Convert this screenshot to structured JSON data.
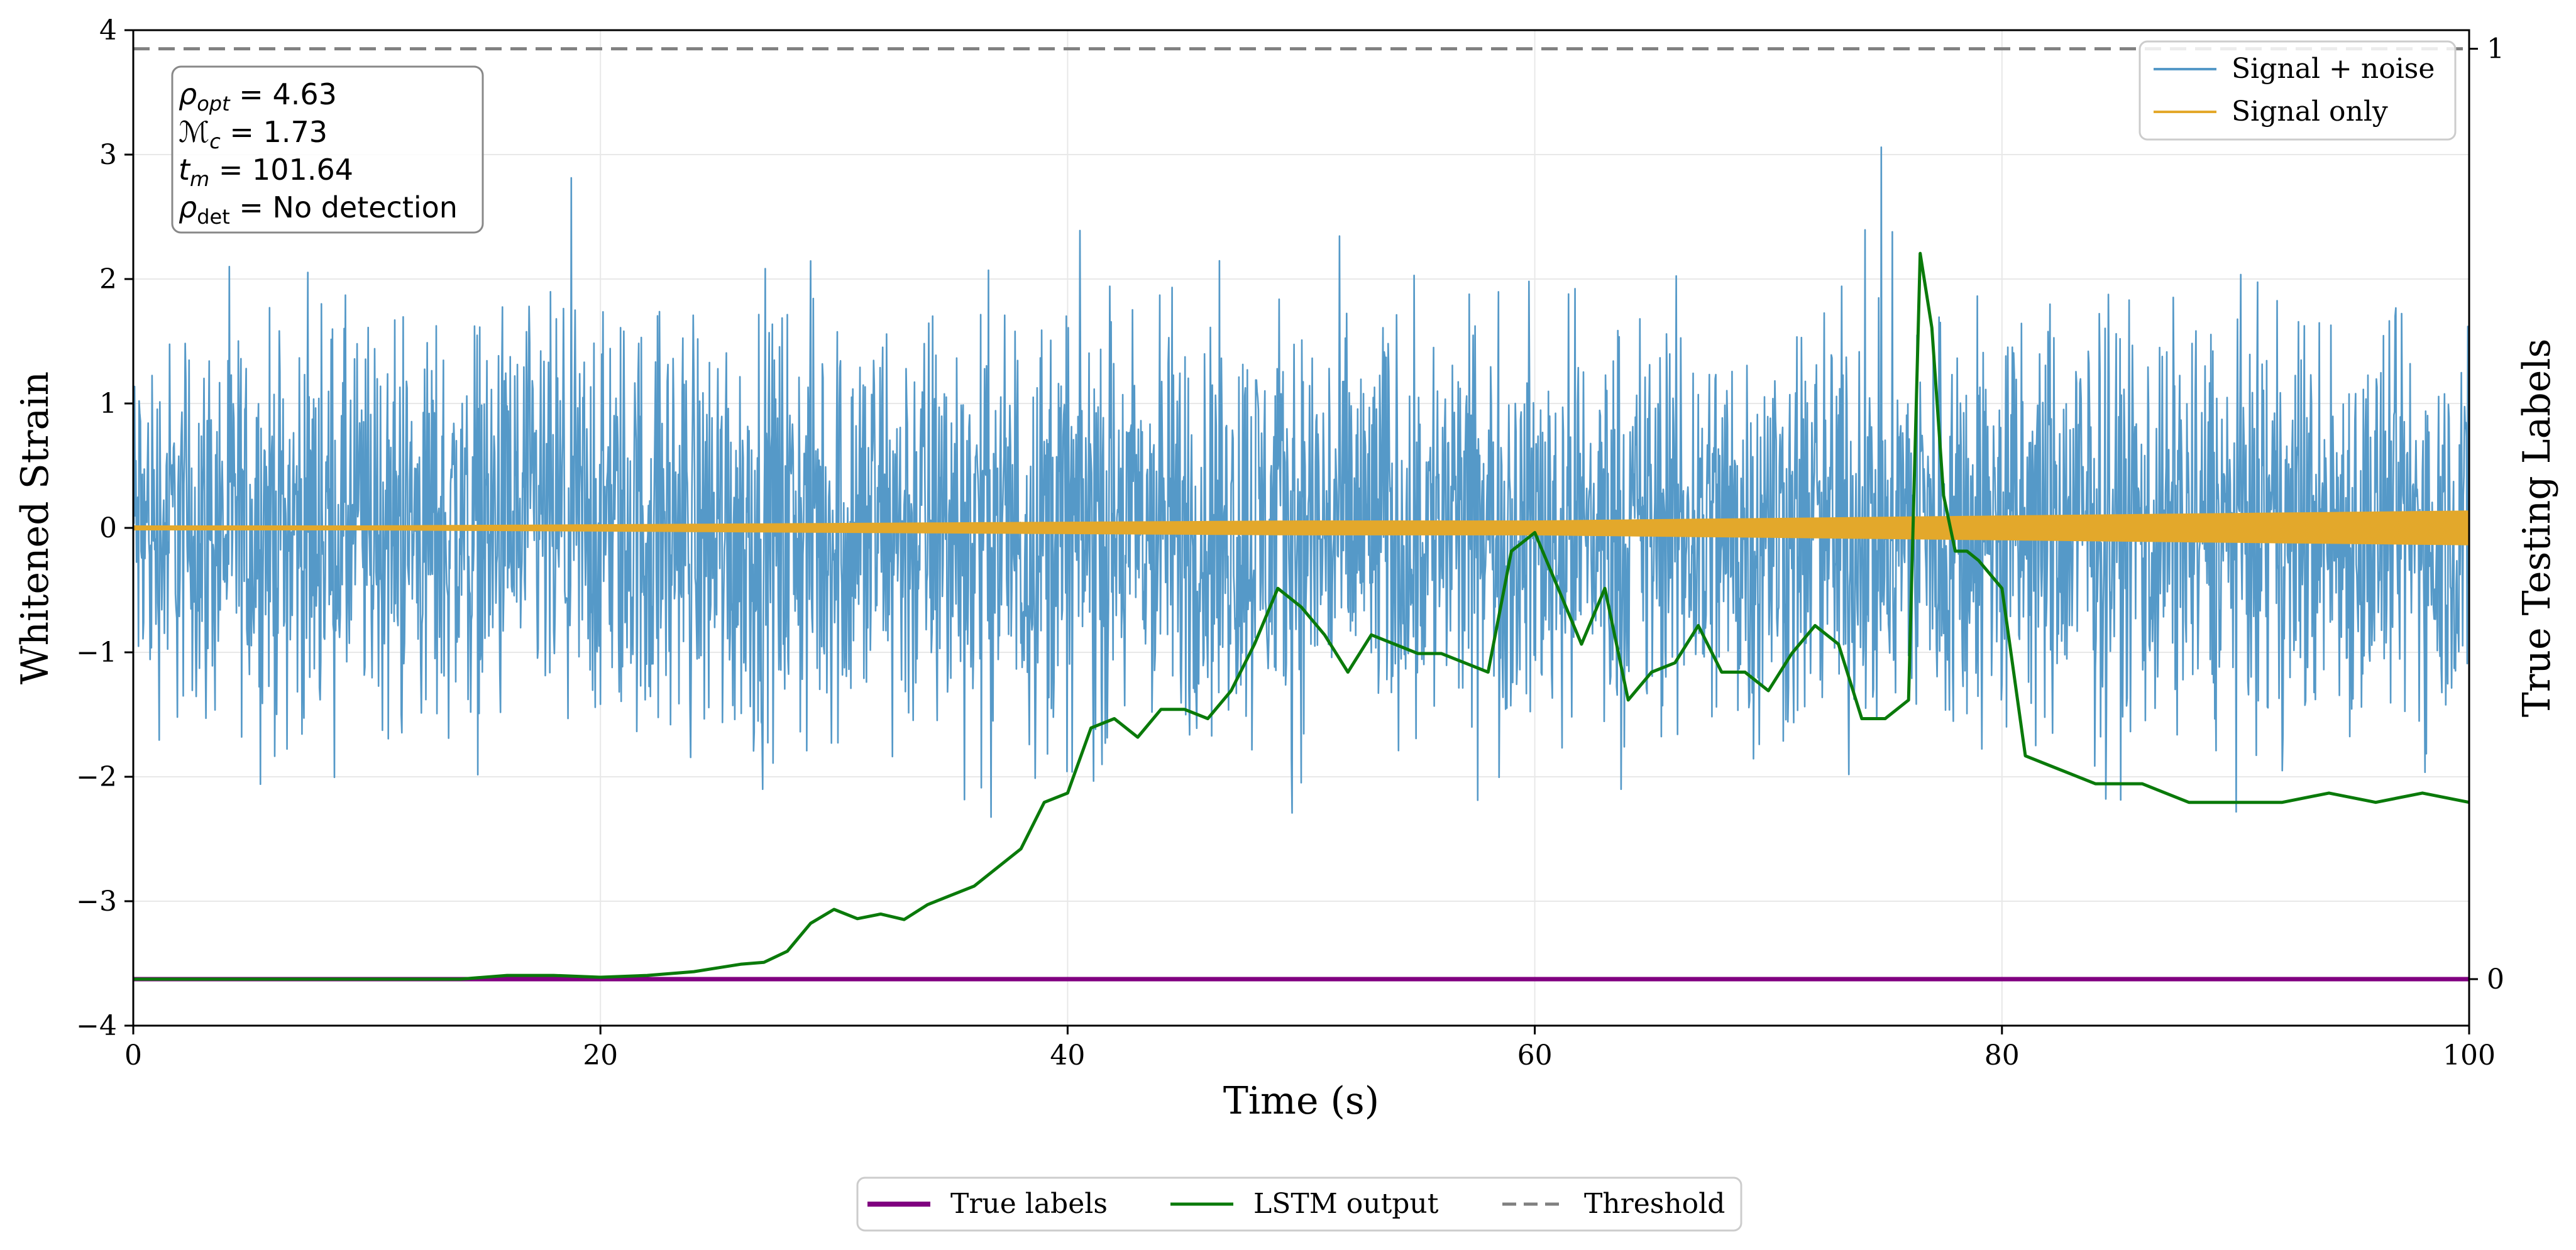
{
  "chart_data": {
    "type": "line",
    "xlabel": "Time (s)",
    "ylabel": "Whitened Strain",
    "ylabel_right": "True Testing Labels",
    "xlim": [
      0,
      100
    ],
    "ylim": [
      -4,
      4
    ],
    "ylim_right": [
      -0.05,
      1.02
    ],
    "x_ticks": [
      "0",
      "20",
      "40",
      "60",
      "80",
      "100"
    ],
    "y_ticks": [
      "−4",
      "−3",
      "−2",
      "−1",
      "0",
      "1",
      "2",
      "3",
      "4"
    ],
    "y_right_ticks": [
      "0",
      "1"
    ],
    "grid": true,
    "colors": {
      "signal_noise": "#5599c8",
      "signal_only": "#e3a82b",
      "true_labels": "#800080",
      "lstm": "#0a7a0a",
      "threshold": "#808080"
    },
    "info_box": {
      "rho_opt": "4.63",
      "mc": "1.73",
      "tm": "101.64",
      "rho_det": "No detection"
    },
    "series": [
      {
        "name": "Signal + noise",
        "axis": "left",
        "envelope_x": [
          0,
          10,
          20,
          30,
          40,
          50,
          60,
          70,
          76,
          80,
          90,
          100
        ],
        "envelope_upper": [
          2.2,
          2.4,
          2.5,
          2.6,
          2.6,
          2.5,
          2.4,
          2.5,
          2.6,
          2.6,
          2.4,
          2.3
        ],
        "envelope_lower": [
          -2.2,
          -2.4,
          -2.5,
          -2.6,
          -2.6,
          -2.5,
          -2.4,
          -2.5,
          -2.6,
          -2.6,
          -2.4,
          -2.3
        ]
      },
      {
        "name": "Signal only",
        "axis": "left",
        "x": [
          0,
          10,
          20,
          30,
          40,
          50,
          60,
          70,
          80,
          90,
          100
        ],
        "amplitude": [
          0.02,
          0.02,
          0.03,
          0.04,
          0.05,
          0.06,
          0.06,
          0.08,
          0.1,
          0.12,
          0.14
        ]
      },
      {
        "name": "True labels",
        "axis": "right",
        "x": [
          0,
          100
        ],
        "y": [
          0,
          0
        ]
      },
      {
        "name": "LSTM output",
        "axis": "right",
        "x": [
          0,
          5,
          10,
          14,
          16,
          18,
          20,
          22,
          24,
          25,
          26,
          27,
          28,
          29,
          30,
          31,
          32,
          33,
          34,
          35,
          36,
          37,
          38,
          39,
          40,
          41,
          42,
          43,
          44,
          45,
          46,
          47,
          48,
          49,
          50,
          51,
          52,
          53,
          54,
          55,
          56,
          57,
          58,
          59,
          60,
          61,
          62,
          63,
          64,
          65,
          66,
          67,
          68,
          69,
          70,
          71,
          72,
          73,
          74,
          75,
          76,
          76.5,
          77,
          77.5,
          78,
          78.5,
          79,
          80,
          81,
          82,
          84,
          86,
          88,
          90,
          92,
          94,
          96,
          98,
          100
        ],
        "y": [
          0,
          0,
          0,
          0,
          0.004,
          0.004,
          0.002,
          0.004,
          0.008,
          0.012,
          0.016,
          0.018,
          0.03,
          0.06,
          0.075,
          0.065,
          0.07,
          0.064,
          0.08,
          0.09,
          0.1,
          0.12,
          0.14,
          0.19,
          0.2,
          0.27,
          0.28,
          0.26,
          0.29,
          0.29,
          0.28,
          0.31,
          0.36,
          0.42,
          0.4,
          0.37,
          0.33,
          0.37,
          0.36,
          0.35,
          0.35,
          0.34,
          0.33,
          0.46,
          0.48,
          0.42,
          0.36,
          0.42,
          0.3,
          0.33,
          0.34,
          0.38,
          0.33,
          0.33,
          0.31,
          0.35,
          0.38,
          0.36,
          0.28,
          0.28,
          0.3,
          0.78,
          0.7,
          0.52,
          0.46,
          0.46,
          0.45,
          0.42,
          0.24,
          0.23,
          0.21,
          0.21,
          0.19,
          0.19,
          0.19,
          0.2,
          0.19,
          0.2,
          0.19
        ]
      },
      {
        "name": "Threshold",
        "axis": "right",
        "x": [
          0,
          100
        ],
        "y": [
          1,
          1
        ]
      }
    ],
    "legend_top": [
      {
        "label": "Signal + noise",
        "color": "#5599c8"
      },
      {
        "label": "Signal only",
        "color": "#e3a82b"
      }
    ],
    "legend_bottom": [
      {
        "label": "True labels",
        "color": "#800080",
        "style": "solid"
      },
      {
        "label": "LSTM output",
        "color": "#0a7a0a",
        "style": "solid"
      },
      {
        "label": "Threshold",
        "color": "#808080",
        "style": "dashed"
      }
    ]
  }
}
